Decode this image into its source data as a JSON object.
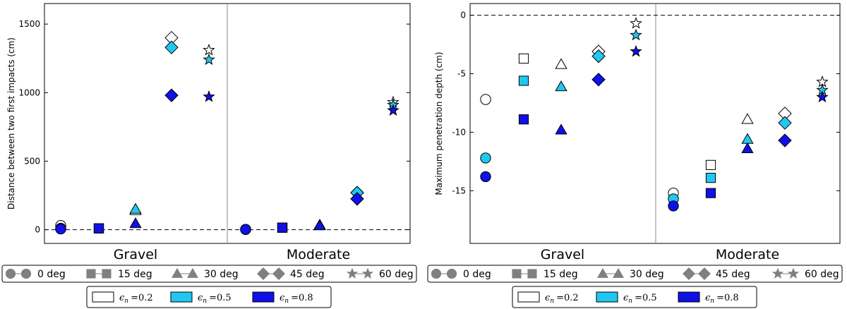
{
  "colors": {
    "eps_0.2": "#ffffff",
    "eps_0.5": "#1fc8f0",
    "eps_0.8": "#1010e8",
    "legend_gray": "#808080"
  },
  "chart_data": [
    {
      "type": "scatter",
      "title": "",
      "ylabel": "Distance between two first impacts (cm)",
      "xlabel": "",
      "ylim": [
        -100,
        1650
      ],
      "yticks": [
        "0",
        "500",
        "1000",
        "1500"
      ],
      "reference_line": 0,
      "groups": [
        "Gravel",
        "Moderate"
      ],
      "angles": [
        "0 deg",
        "15 deg",
        "30 deg",
        "45 deg",
        "60 deg"
      ],
      "series": [
        {
          "name": "εn = 0.2",
          "values": {
            "Gravel": [
              30,
              10,
              140,
              1400,
              1310
            ],
            "Moderate": [
              2,
              15,
              30,
              270,
              930
            ]
          }
        },
        {
          "name": "εn = 0.5",
          "values": {
            "Gravel": [
              10,
              10,
              150,
              1330,
              1240
            ],
            "Moderate": [
              2,
              15,
              35,
              270,
              910
            ]
          }
        },
        {
          "name": "εn = 0.8",
          "values": {
            "Gravel": [
              5,
              10,
              45,
              980,
              970
            ],
            "Moderate": [
              2,
              15,
              30,
              225,
              870
            ]
          }
        }
      ]
    },
    {
      "type": "scatter",
      "title": "",
      "ylabel": "Maximum penetration depth (cm)",
      "xlabel": "",
      "ylim": [
        -19.5,
        1.0
      ],
      "yticks": [
        "0",
        "-5",
        "-10",
        "-15"
      ],
      "reference_line": 0,
      "groups": [
        "Gravel",
        "Moderate"
      ],
      "angles": [
        "0 deg",
        "15 deg",
        "30 deg",
        "45 deg",
        "60 deg"
      ],
      "series": [
        {
          "name": "εn = 0.2",
          "values": {
            "Gravel": [
              -7.2,
              -3.7,
              -4.2,
              -3.1,
              -0.7
            ],
            "Moderate": [
              -15.2,
              -12.8,
              -8.9,
              -8.4,
              -5.7
            ]
          }
        },
        {
          "name": "εn = 0.5",
          "values": {
            "Gravel": [
              -12.2,
              -5.6,
              -6.1,
              -3.5,
              -1.7
            ],
            "Moderate": [
              -15.7,
              -13.9,
              -10.6,
              -9.2,
              -6.4
            ]
          }
        },
        {
          "name": "εn = 0.8",
          "values": {
            "Gravel": [
              -13.8,
              -8.9,
              -9.8,
              -5.5,
              -3.1
            ],
            "Moderate": [
              -16.3,
              -15.2,
              -11.4,
              -10.7,
              -7.0
            ]
          }
        }
      ]
    }
  ],
  "legend_angles": [
    "0 deg",
    "15 deg",
    "30 deg",
    "45 deg",
    "60 deg"
  ],
  "legend_eps_prefix": "ϵ",
  "legend_eps_sub": "n",
  "legend_eps_values": [
    "=0.2",
    "=0.5",
    "=0.8"
  ]
}
